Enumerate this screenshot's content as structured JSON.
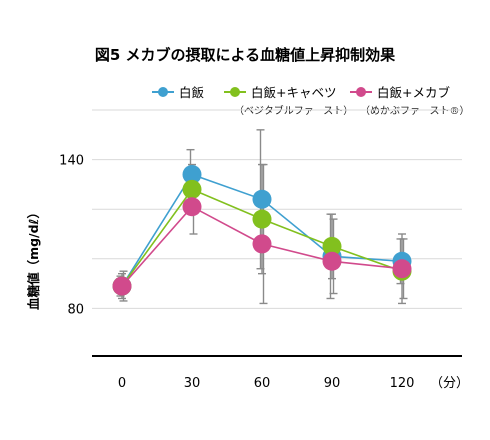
{
  "chart_data": {
    "type": "line",
    "title": "図5 メカブの摂取による血糖値上昇抑制効果",
    "xlabel": "",
    "x_unit": "（分）",
    "ylabel": "血糖値（mg/dℓ）",
    "x": [
      0,
      30,
      60,
      90,
      120
    ],
    "x_tick_labels": [
      "0",
      "30",
      "60",
      "90",
      "120"
    ],
    "y_ticks": [
      80,
      140
    ],
    "ylim": [
      60,
      160
    ],
    "grid": true,
    "legend_position": "top",
    "series": [
      {
        "name": "白飯",
        "note": "",
        "color": "#3fa0d0",
        "values": [
          89,
          134,
          124,
          101,
          99
        ],
        "error_high": [
          93,
          144,
          152,
          118,
          108
        ],
        "error_low": [
          85,
          124,
          96,
          84,
          90
        ]
      },
      {
        "name": "白飯+キャベツ",
        "note": "（ベジタブルファースト）",
        "color": "#82c01e",
        "values": [
          89,
          128,
          116,
          105,
          95
        ],
        "error_high": [
          94,
          138,
          138,
          118,
          110
        ],
        "error_low": [
          84,
          118,
          94,
          92,
          82
        ]
      },
      {
        "name": "白飯+メカブ",
        "note": "（めかぶファースト®）",
        "color": "#d14a8c",
        "values": [
          89,
          121,
          106,
          99,
          96
        ],
        "error_high": [
          95,
          132,
          138,
          116,
          108
        ],
        "error_low": [
          83,
          110,
          82,
          86,
          84
        ]
      }
    ]
  }
}
